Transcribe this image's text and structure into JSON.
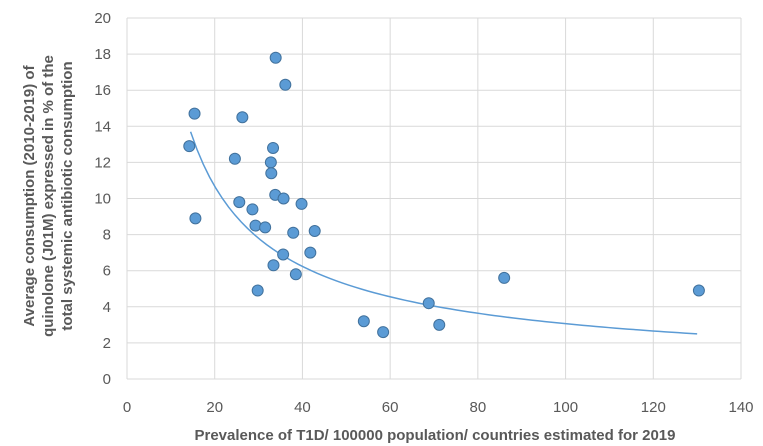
{
  "chart_data": {
    "type": "scatter",
    "xlabel": "Prevalence of T1D/ 100000 population/ countries estimated for 2019",
    "ylabel_lines": [
      "Average consumption (2010-2019) of",
      "quinolone (J01M) expressed in % of the",
      "total systemic antibiotic consumption"
    ],
    "xlim": [
      0,
      140
    ],
    "ylim": [
      0,
      20
    ],
    "x_ticks": [
      0,
      20,
      40,
      60,
      80,
      100,
      120,
      140
    ],
    "y_ticks": [
      0,
      2,
      4,
      6,
      8,
      10,
      12,
      14,
      16,
      18,
      20
    ],
    "grid": "vertical and horizontal major gridlines",
    "legend": "none",
    "point_color": "#5b9bd5",
    "trend_color": "#5b9bd5",
    "points": [
      {
        "x": 14.2,
        "y": 12.9
      },
      {
        "x": 15.4,
        "y": 14.7
      },
      {
        "x": 15.6,
        "y": 8.9
      },
      {
        "x": 24.6,
        "y": 12.2
      },
      {
        "x": 25.6,
        "y": 9.8
      },
      {
        "x": 26.3,
        "y": 14.5
      },
      {
        "x": 28.6,
        "y": 9.4
      },
      {
        "x": 29.3,
        "y": 8.5
      },
      {
        "x": 29.8,
        "y": 4.9
      },
      {
        "x": 31.5,
        "y": 8.4
      },
      {
        "x": 32.8,
        "y": 12.0
      },
      {
        "x": 32.9,
        "y": 11.4
      },
      {
        "x": 33.3,
        "y": 12.8
      },
      {
        "x": 33.4,
        "y": 6.3
      },
      {
        "x": 33.8,
        "y": 10.2
      },
      {
        "x": 33.9,
        "y": 17.8
      },
      {
        "x": 35.6,
        "y": 6.9
      },
      {
        "x": 35.7,
        "y": 10.0
      },
      {
        "x": 36.1,
        "y": 16.3
      },
      {
        "x": 37.9,
        "y": 8.1
      },
      {
        "x": 38.5,
        "y": 5.8
      },
      {
        "x": 39.8,
        "y": 9.7
      },
      {
        "x": 41.8,
        "y": 7.0
      },
      {
        "x": 42.8,
        "y": 8.2
      },
      {
        "x": 54.0,
        "y": 3.2
      },
      {
        "x": 58.4,
        "y": 2.6
      },
      {
        "x": 68.8,
        "y": 4.2
      },
      {
        "x": 71.2,
        "y": 3.0
      },
      {
        "x": 86.0,
        "y": 5.6
      },
      {
        "x": 130.4,
        "y": 4.9
      }
    ],
    "trendline": {
      "type": "power",
      "x_start": 14.5,
      "x_end": 130.0,
      "y_at_start": 13.7,
      "y_at_end": 2.5
    }
  }
}
